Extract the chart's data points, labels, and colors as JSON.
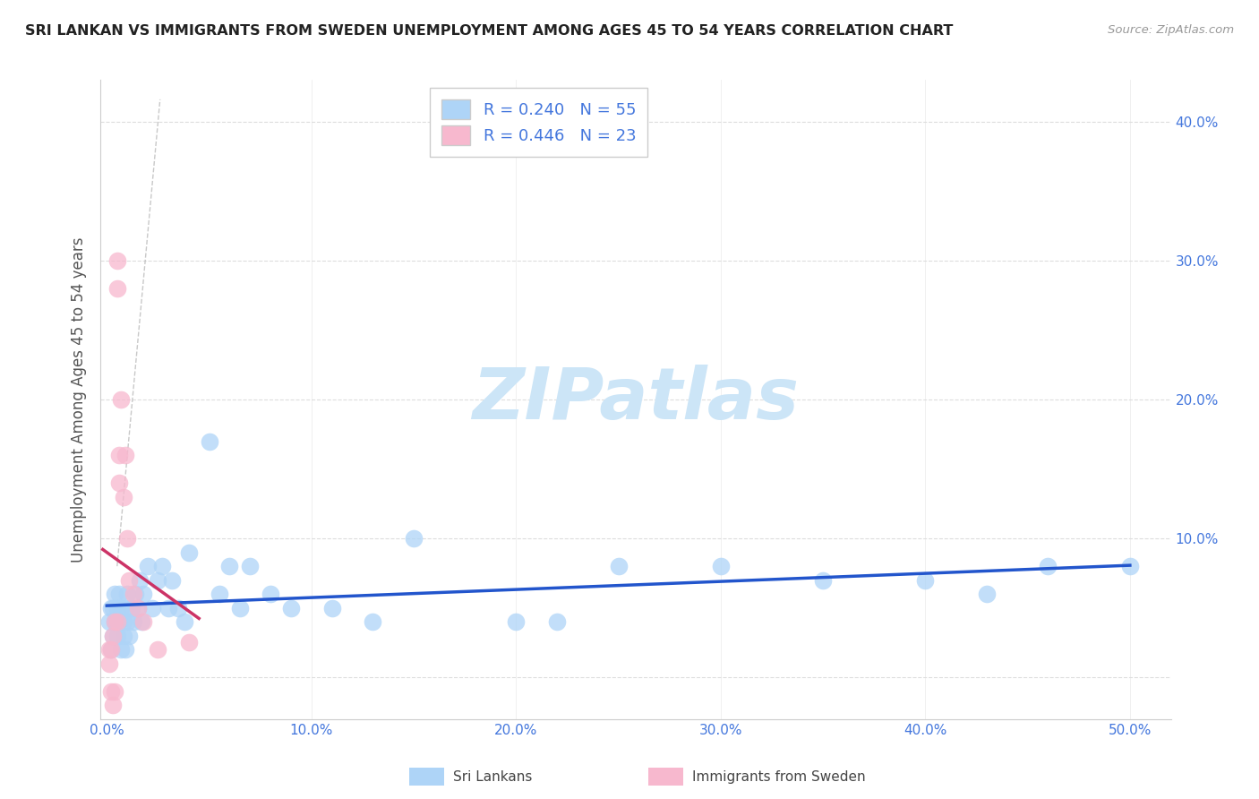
{
  "title": "SRI LANKAN VS IMMIGRANTS FROM SWEDEN UNEMPLOYMENT AMONG AGES 45 TO 54 YEARS CORRELATION CHART",
  "source": "Source: ZipAtlas.com",
  "ylabel": "Unemployment Among Ages 45 to 54 years",
  "xlim": [
    -0.003,
    0.52
  ],
  "ylim": [
    -0.03,
    0.43
  ],
  "xticks": [
    0.0,
    0.1,
    0.2,
    0.3,
    0.4,
    0.5
  ],
  "xtick_labels": [
    "0.0%",
    "10.0%",
    "20.0%",
    "30.0%",
    "40.0%",
    "50.0%"
  ],
  "yticks": [
    0.0,
    0.1,
    0.2,
    0.3,
    0.4
  ],
  "ytick_labels_right": [
    "",
    "10.0%",
    "20.0%",
    "30.0%",
    "40.0%"
  ],
  "series1_label": "Sri Lankans",
  "series1_R": "0.240",
  "series1_N": "55",
  "series1_color": "#aed4f7",
  "series1_edge_color": "#aed4f7",
  "series1_line_color": "#2255cc",
  "series2_label": "Immigrants from Sweden",
  "series2_R": "0.446",
  "series2_N": "23",
  "series2_color": "#f7b8ce",
  "series2_edge_color": "#f7b8ce",
  "series2_line_color": "#cc3366",
  "legend_text_color": "#4477dd",
  "watermark_color": "#cce5f7",
  "background_color": "#ffffff",
  "grid_color": "#dddddd",
  "tick_color": "#4477dd",
  "axis_color": "#cccccc",
  "title_color": "#222222",
  "source_color": "#999999",
  "ylabel_color": "#555555",
  "sl_x": [
    0.001,
    0.002,
    0.002,
    0.003,
    0.003,
    0.004,
    0.004,
    0.005,
    0.005,
    0.006,
    0.006,
    0.007,
    0.007,
    0.008,
    0.008,
    0.009,
    0.009,
    0.01,
    0.01,
    0.011,
    0.012,
    0.013,
    0.014,
    0.015,
    0.016,
    0.017,
    0.018,
    0.02,
    0.022,
    0.025,
    0.027,
    0.03,
    0.032,
    0.035,
    0.038,
    0.04,
    0.05,
    0.055,
    0.06,
    0.065,
    0.07,
    0.08,
    0.09,
    0.11,
    0.13,
    0.15,
    0.2,
    0.22,
    0.25,
    0.3,
    0.35,
    0.4,
    0.43,
    0.46,
    0.5
  ],
  "sl_y": [
    0.04,
    0.05,
    0.02,
    0.05,
    0.03,
    0.04,
    0.06,
    0.03,
    0.05,
    0.04,
    0.06,
    0.02,
    0.05,
    0.04,
    0.03,
    0.05,
    0.02,
    0.04,
    0.06,
    0.03,
    0.05,
    0.04,
    0.06,
    0.05,
    0.07,
    0.04,
    0.06,
    0.08,
    0.05,
    0.07,
    0.08,
    0.05,
    0.07,
    0.05,
    0.04,
    0.09,
    0.17,
    0.06,
    0.08,
    0.05,
    0.08,
    0.06,
    0.05,
    0.05,
    0.04,
    0.1,
    0.04,
    0.04,
    0.08,
    0.08,
    0.07,
    0.07,
    0.06,
    0.08,
    0.08
  ],
  "im_x": [
    0.001,
    0.001,
    0.002,
    0.002,
    0.003,
    0.003,
    0.004,
    0.004,
    0.005,
    0.005,
    0.005,
    0.006,
    0.006,
    0.007,
    0.008,
    0.009,
    0.01,
    0.011,
    0.013,
    0.015,
    0.018,
    0.025,
    0.04
  ],
  "im_y": [
    0.01,
    0.02,
    0.02,
    -0.01,
    0.03,
    -0.02,
    0.04,
    -0.01,
    0.3,
    0.28,
    0.04,
    0.16,
    0.14,
    0.2,
    0.13,
    0.16,
    0.1,
    0.07,
    0.06,
    0.05,
    0.04,
    0.02,
    0.025
  ]
}
